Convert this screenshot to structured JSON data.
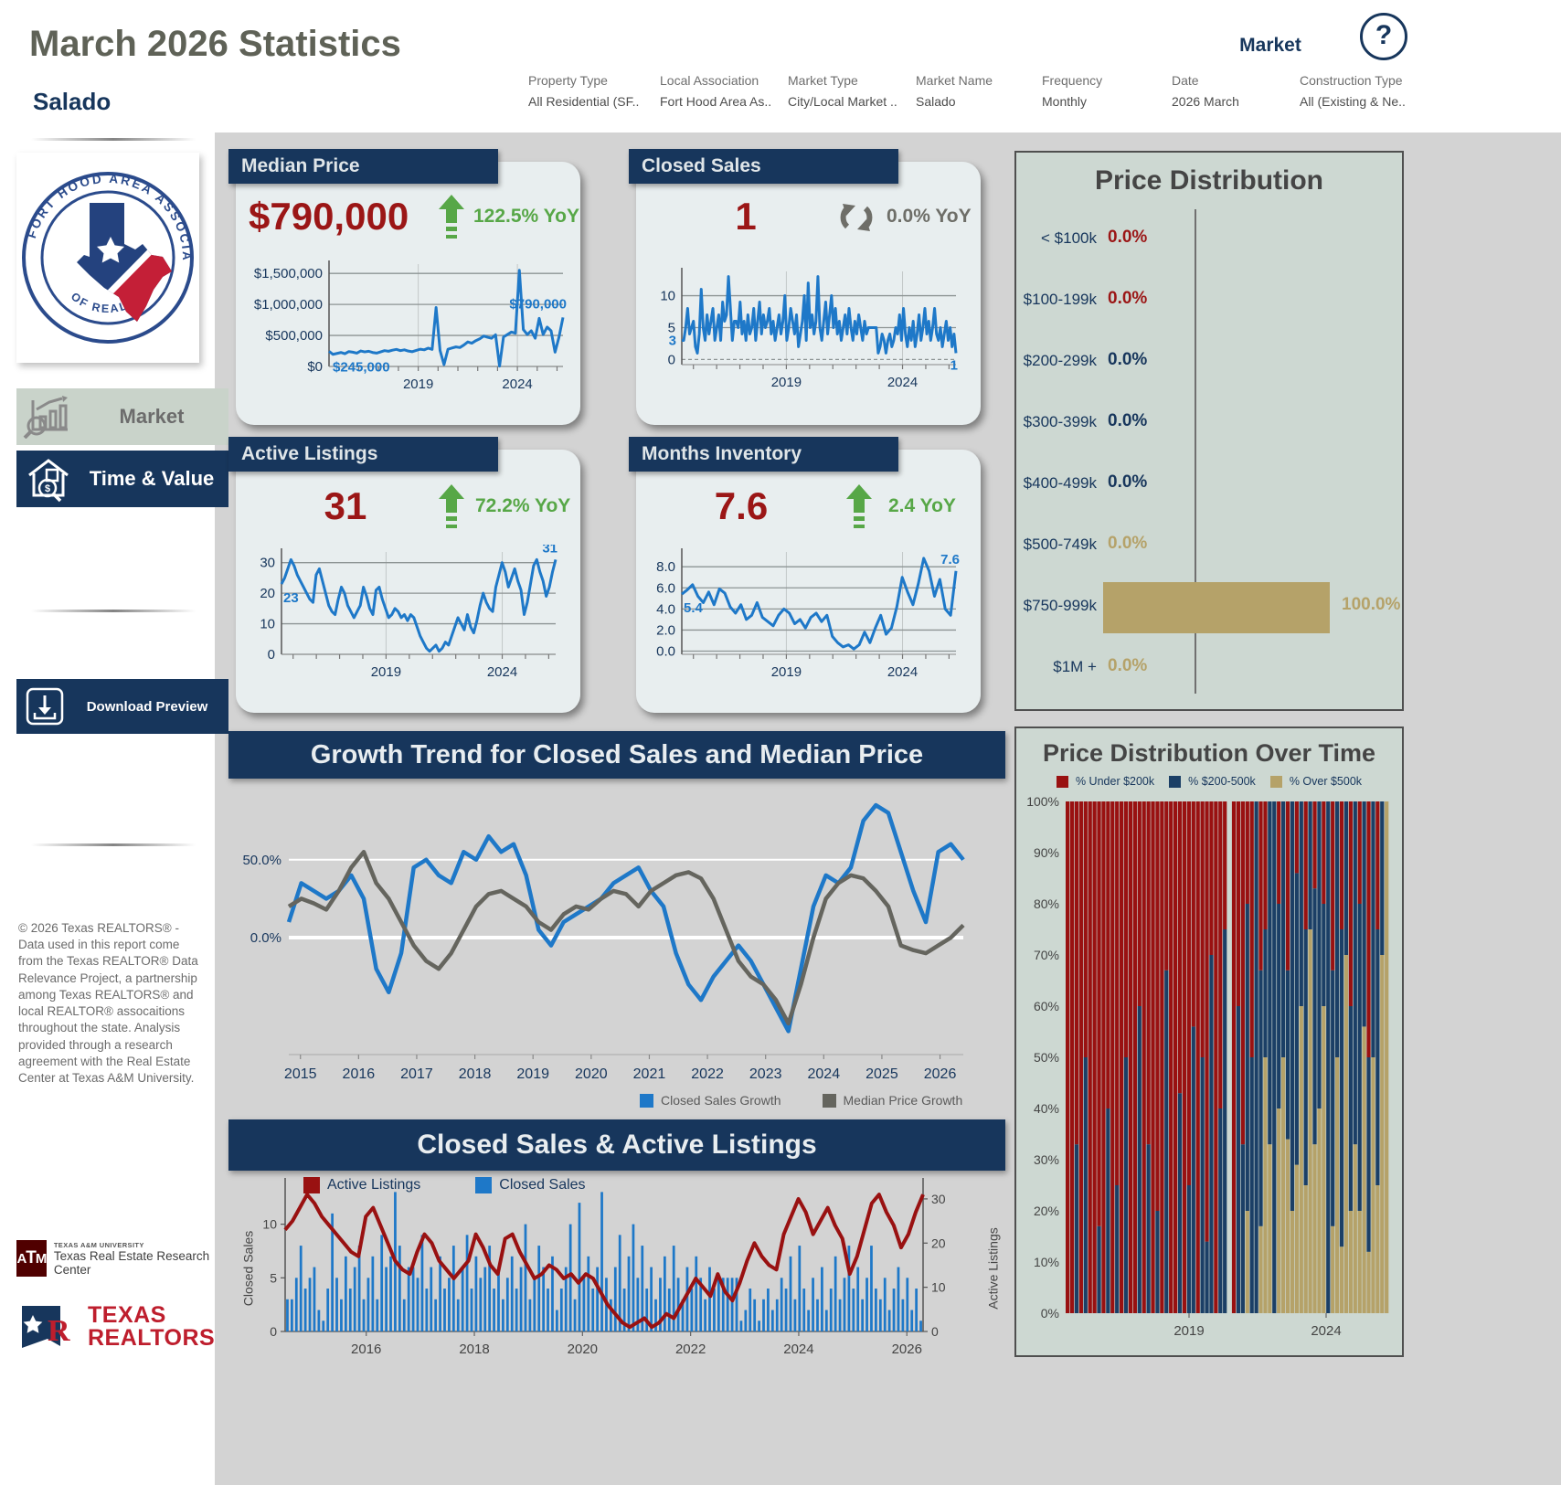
{
  "header": {
    "title": "March 2026 Statistics",
    "subtitle": "Salado",
    "market_label": "Market",
    "filters": [
      {
        "label": "Property Type",
        "value": "All Residential (SF.."
      },
      {
        "label": "Local Association",
        "value": "Fort Hood Area As.."
      },
      {
        "label": "Market Type",
        "value": "City/Local Market .."
      },
      {
        "label": "Market Name",
        "value": "Salado"
      },
      {
        "label": "Frequency",
        "value": "Monthly"
      },
      {
        "label": "Date",
        "value": "2026 March"
      },
      {
        "label": "Construction Type",
        "value": "All (Existing & Ne.."
      }
    ]
  },
  "sidebar": {
    "logo_top_text": "FORT HOOD AREA ASSOCIATION",
    "logo_bottom_text": "OF REALTORS®",
    "nav": [
      {
        "label": "Market",
        "active": false
      },
      {
        "label": "Time & Value",
        "active": true
      }
    ],
    "download_label": "Download Preview",
    "copyright": "© 2026 Texas REALTORS® - Data used in this report come from the Texas REALTOR® Data Relevance Project, a partnership among Texas REALTORS® and local REALTOR® assocaitions throughout the state. Analysis provided through a research agreement with the Real Estate Center at Texas A&M University.",
    "tamu_line1": "TEXAS A&M UNIVERSITY",
    "tamu_line2": "Texas Real Estate Research Center",
    "txr_line1": "TEXAS",
    "txr_line2": "REALTORS"
  },
  "kpis": {
    "median_price": {
      "title": "Median Price",
      "value": "$790,000",
      "yoy": "122.5% YoY",
      "trend": "up"
    },
    "closed_sales": {
      "title": "Closed Sales",
      "value": "1",
      "yoy": "0.0% YoY",
      "trend": "flat"
    },
    "active_listings": {
      "title": "Active Listings",
      "value": "31",
      "yoy": "72.2% YoY",
      "trend": "up"
    },
    "months_inventory": {
      "title": "Months Inventory",
      "value": "7.6",
      "yoy": "2.4 YoY",
      "trend": "up"
    }
  },
  "panels": {
    "growth_title": "Growth Trend for Closed Sales and Median Price",
    "combo_title": "Closed Sales & Active Listings",
    "pd_title": "Price Distribution",
    "pdot_title": "Price Distribution Over Time"
  },
  "colors": {
    "navy": "#17365c",
    "dark_red": "#9b1616",
    "green": "#57a747",
    "blue": "#1e78c8",
    "gray_line": "#65655e",
    "tan": "#b5a269",
    "bar_red": "#991111",
    "bar_navy": "#1b3f66",
    "card_bg": "#e8eeef",
    "panel_bg": "#cdd8d2",
    "page_bg": "#d3d3d3"
  },
  "chart_data": [
    {
      "id": "median-price-trend",
      "type": "line",
      "title": "Median Price",
      "x_start": 2014.5,
      "x_end": 2026.3,
      "xlabels": [
        2019,
        2024
      ],
      "ylim": [
        0,
        1650000
      ],
      "yticks": [
        {
          "v": 0,
          "label": "$0"
        },
        {
          "v": 500000,
          "label": "$500,000"
        },
        {
          "v": 1000000,
          "label": "$1,000,000"
        },
        {
          "v": 1500000,
          "label": "$1,500,000"
        }
      ],
      "first_label": "$245,000",
      "last_label": "$790,000",
      "values": [
        245000,
        195000,
        210000,
        225000,
        205000,
        240000,
        230000,
        215000,
        250000,
        235000,
        245000,
        225000,
        215000,
        235000,
        255000,
        245000,
        262000,
        275000,
        255000,
        268000,
        248000,
        238000,
        258000,
        278000,
        268000,
        295000,
        275000,
        950000,
        258000,
        30000,
        278000,
        298000,
        315000,
        305000,
        345000,
        395000,
        375000,
        415000,
        445000,
        490000,
        470000,
        455000,
        510000,
        5000,
        475000,
        515000,
        555000,
        535000,
        1550000,
        595000,
        515000,
        575000,
        455000,
        775000,
        515000,
        635000,
        575000,
        230000,
        475000,
        790000
      ]
    },
    {
      "id": "closed-sales-trend",
      "type": "line",
      "title": "Closed Sales",
      "x_start": 2014.5,
      "x_end": 2026.3,
      "xlabels": [
        2019,
        2024
      ],
      "ylim": [
        -0.8,
        13.8
      ],
      "yticks": [
        {
          "v": 0,
          "label": "0",
          "dash": true
        },
        {
          "v": 5,
          "label": "5"
        },
        {
          "v": 10,
          "label": "10"
        }
      ],
      "first_label": "3",
      "last_label": "1",
      "values": [
        3,
        3,
        5,
        8,
        4,
        5,
        6,
        2,
        1,
        4,
        11,
        5,
        3,
        7,
        4,
        6,
        8,
        3,
        5,
        7,
        3,
        9,
        6,
        7,
        13,
        8,
        3,
        6,
        6,
        5,
        9,
        4,
        6,
        3,
        7,
        4,
        5,
        8,
        3,
        6,
        9,
        4,
        7,
        5,
        6,
        8,
        4,
        6,
        3,
        5,
        7,
        4,
        6,
        10,
        3,
        5,
        8,
        6,
        4,
        7,
        2,
        4,
        6,
        10,
        3,
        12,
        5,
        7,
        4,
        6,
        13,
        5,
        3,
        6,
        9,
        4,
        7,
        10,
        5,
        8,
        4,
        6,
        3,
        5,
        7,
        4,
        8,
        5,
        3,
        6,
        4,
        7,
        5,
        3,
        6,
        4,
        5,
        5,
        5,
        5,
        5,
        1,
        2,
        4,
        3,
        1,
        3,
        4,
        2,
        3,
        5,
        4,
        7,
        3,
        8,
        4,
        2,
        5,
        3,
        6,
        2,
        4,
        7,
        3,
        5,
        8,
        4,
        6,
        3,
        5,
        8,
        4,
        3,
        5,
        2,
        4,
        6,
        3,
        5,
        2,
        4,
        1
      ]
    },
    {
      "id": "active-listings-trend",
      "type": "line",
      "title": "Active Listings",
      "x_start": 2014.5,
      "x_end": 2026.3,
      "xlabels": [
        2019,
        2024
      ],
      "ylim": [
        0,
        33.5
      ],
      "yticks": [
        {
          "v": 0,
          "label": "0"
        },
        {
          "v": 10,
          "label": "10"
        },
        {
          "v": 20,
          "label": "20"
        },
        {
          "v": 30,
          "label": "30"
        }
      ],
      "first_label": "23",
      "last_label": "31",
      "values": [
        23,
        25,
        28,
        31,
        29,
        26,
        24,
        22,
        20,
        18,
        17,
        26,
        28,
        24,
        20,
        16,
        14,
        13,
        18,
        22,
        20,
        16,
        14,
        12,
        14,
        16,
        22,
        19,
        15,
        13,
        21,
        22,
        18,
        15,
        12,
        13,
        15,
        14,
        12,
        13,
        11,
        13,
        12,
        9,
        6,
        4,
        2,
        1,
        2,
        3,
        1,
        2,
        4,
        3,
        6,
        9,
        12,
        10,
        8,
        13,
        9,
        7,
        11,
        16,
        20,
        17,
        15,
        14,
        22,
        26,
        30,
        27,
        22,
        25,
        28,
        24,
        21,
        13,
        17,
        23,
        29,
        31,
        27,
        24,
        19,
        22,
        27,
        31
      ]
    },
    {
      "id": "months-inventory-trend",
      "type": "line",
      "title": "Months Inventory",
      "x_start": 2014.5,
      "x_end": 2026.3,
      "xlabels": [
        2019,
        2024
      ],
      "ylim": [
        -0.3,
        9.4
      ],
      "yticks": [
        {
          "v": 0,
          "label": "0.0"
        },
        {
          "v": 2,
          "label": "2.0"
        },
        {
          "v": 4,
          "label": "4.0"
        },
        {
          "v": 6,
          "label": "6.0"
        },
        {
          "v": 8,
          "label": "8.0"
        }
      ],
      "first_label": "5.4",
      "last_label": "7.6",
      "values": [
        5.4,
        5.8,
        6.3,
        5.2,
        4.6,
        5.6,
        4.4,
        5.9,
        5.5,
        4.2,
        3.6,
        4.4,
        3.0,
        3.4,
        4.6,
        3.2,
        2.8,
        2.4,
        3.4,
        4.0,
        3.6,
        2.6,
        3.0,
        2.2,
        3.2,
        3.6,
        2.8,
        3.4,
        1.4,
        0.8,
        0.4,
        0.6,
        0.2,
        0.6,
        1.8,
        0.8,
        2.2,
        3.4,
        1.6,
        2.2,
        4.2,
        7.0,
        5.6,
        4.4,
        6.4,
        8.8,
        7.6,
        5.2,
        6.8,
        4.0,
        3.4,
        7.6
      ]
    },
    {
      "id": "growth-trend",
      "type": "line",
      "title": "Growth Trend for Closed Sales and Median Price",
      "x_start": 2014.8,
      "x_end": 2026.4,
      "xlabels": [
        2015,
        2016,
        2017,
        2018,
        2019,
        2020,
        2021,
        2022,
        2023,
        2024,
        2025,
        2026
      ],
      "ylim": [
        -75,
        95
      ],
      "yticks": [
        {
          "v": 0,
          "label": "0.0%"
        },
        {
          "v": 50,
          "label": "50.0%"
        }
      ],
      "series": [
        {
          "name": "Closed Sales Growth",
          "color": "#1e78c8",
          "values": [
            10,
            35,
            30,
            25,
            30,
            40,
            25,
            -20,
            -35,
            -10,
            45,
            50,
            40,
            35,
            55,
            50,
            65,
            55,
            60,
            40,
            5,
            -5,
            10,
            15,
            20,
            25,
            35,
            40,
            45,
            30,
            20,
            -10,
            -30,
            -40,
            -25,
            -15,
            -5,
            -15,
            -30,
            -45,
            -60,
            -20,
            20,
            40,
            35,
            45,
            75,
            85,
            80,
            55,
            30,
            10,
            55,
            60,
            50
          ]
        },
        {
          "name": "Median Price Growth",
          "color": "#65655e",
          "values": [
            20,
            25,
            22,
            18,
            30,
            45,
            55,
            35,
            25,
            10,
            -5,
            -15,
            -20,
            -10,
            5,
            20,
            28,
            30,
            25,
            20,
            10,
            5,
            15,
            20,
            18,
            25,
            30,
            28,
            20,
            30,
            35,
            40,
            42,
            38,
            25,
            5,
            -15,
            -25,
            -30,
            -40,
            -55,
            -30,
            0,
            25,
            35,
            40,
            38,
            30,
            20,
            -5,
            -8,
            -10,
            -5,
            0,
            8
          ]
        }
      ]
    },
    {
      "id": "price-distribution",
      "type": "bar",
      "title": "Price Distribution",
      "categories": [
        "< $100k",
        "$100-199k",
        "$200-299k",
        "$300-399k",
        "$400-499k",
        "$500-749k",
        "$750-999k",
        "$1M +"
      ],
      "values": [
        0,
        0,
        0,
        0,
        0,
        0,
        100,
        0
      ],
      "value_labels": [
        "0.0%",
        "0.0%",
        "0.0%",
        "0.0%",
        "0.0%",
        "0.0%",
        "100.0%",
        "0.0%"
      ],
      "row_colors": [
        "#9b1616",
        "#9b1616",
        "#17365c",
        "#17365c",
        "#17365c",
        "#b5a269",
        "#b5a269",
        "#b5a269"
      ],
      "bar_color": "#b5a269",
      "xlim": [
        0,
        100
      ]
    },
    {
      "id": "closed-sales-active-listings",
      "type": "bar+line",
      "title": "Closed Sales & Active Listings",
      "legend": [
        "Active Listings",
        "Closed Sales"
      ],
      "bars_ref": "closed-sales-trend",
      "line_ref": "active-listings-trend",
      "bar_color": "#1e78c8",
      "line_color": "#991111",
      "left_axis": {
        "label": "Closed Sales",
        "ticks": [
          0,
          5,
          10
        ],
        "lim": [
          0,
          13.8
        ]
      },
      "right_axis": {
        "label": "Active Listings",
        "ticks": [
          0,
          10,
          20,
          30
        ],
        "lim": [
          0,
          33.5
        ]
      },
      "x_start": 2014.5,
      "x_end": 2026.3,
      "xlabels": [
        2016,
        2018,
        2020,
        2022,
        2024,
        2026
      ]
    },
    {
      "id": "price-distribution-over-time",
      "type": "stacked-bar",
      "title": "Price Distribution Over Time",
      "series": [
        {
          "name": "% Under $200k",
          "color": "#991111"
        },
        {
          "name": "% $200-500k",
          "color": "#1b3f66"
        },
        {
          "name": "% Over $500k",
          "color": "#b5a269"
        }
      ],
      "x_start": 2014.5,
      "x_end": 2026.3,
      "xlabels": [
        2019,
        2024
      ],
      "ylim": [
        0,
        100
      ],
      "yticks": [
        "0%",
        "10%",
        "20%",
        "30%",
        "40%",
        "50%",
        "60%",
        "70%",
        "80%",
        "90%",
        "100%"
      ],
      "columns": [
        [
          100,
          0,
          0
        ],
        [
          100,
          0,
          0
        ],
        [
          67,
          33,
          0
        ],
        [
          100,
          0,
          0
        ],
        [
          50,
          50,
          0
        ],
        [
          100,
          0,
          0
        ],
        [
          100,
          0,
          0
        ],
        [
          83,
          17,
          0
        ],
        [
          100,
          0,
          0
        ],
        [
          60,
          40,
          0
        ],
        [
          100,
          0,
          0
        ],
        [
          75,
          25,
          0
        ],
        [
          100,
          0,
          0
        ],
        [
          50,
          50,
          0
        ],
        [
          100,
          0,
          0
        ],
        [
          100,
          0,
          0
        ],
        [
          40,
          60,
          0
        ],
        [
          100,
          0,
          0
        ],
        [
          67,
          33,
          0
        ],
        [
          100,
          0,
          0
        ],
        [
          80,
          20,
          0
        ],
        [
          100,
          0,
          0
        ],
        [
          33,
          67,
          0
        ],
        [
          100,
          0,
          0
        ],
        [
          100,
          0,
          0
        ],
        [
          57,
          43,
          0
        ],
        [
          100,
          0,
          0
        ],
        [
          75,
          25,
          0
        ],
        [
          44,
          56,
          0
        ],
        [
          100,
          0,
          0
        ],
        [
          50,
          50,
          0
        ],
        [
          86,
          14,
          0
        ],
        [
          30,
          70,
          0
        ],
        [
          100,
          0,
          0
        ],
        [
          60,
          40,
          0
        ],
        [
          25,
          75,
          0
        ],
        null,
        [
          100,
          0,
          0
        ],
        [
          40,
          60,
          0
        ],
        [
          67,
          33,
          0
        ],
        [
          20,
          60,
          20
        ],
        [
          50,
          50,
          0
        ],
        [
          0,
          100,
          0
        ],
        [
          33,
          50,
          17
        ],
        [
          25,
          25,
          50
        ],
        [
          0,
          67,
          33
        ],
        [
          0,
          100,
          0
        ],
        [
          20,
          40,
          40
        ],
        [
          0,
          50,
          50
        ],
        [
          33,
          33,
          34
        ],
        [
          0,
          80,
          20
        ],
        [
          14,
          57,
          29
        ],
        [
          0,
          40,
          60
        ],
        [
          25,
          50,
          25
        ],
        [
          0,
          25,
          75
        ],
        [
          17,
          50,
          33
        ],
        [
          0,
          60,
          40
        ],
        [
          20,
          20,
          60
        ],
        [
          0,
          100,
          0
        ],
        [
          33,
          50,
          17
        ],
        [
          0,
          50,
          50
        ],
        [
          25,
          62,
          13
        ],
        [
          0,
          30,
          70
        ],
        [
          40,
          40,
          20
        ],
        [
          0,
          67,
          33
        ],
        [
          20,
          60,
          20
        ],
        [
          0,
          44,
          56
        ],
        [
          50,
          38,
          12
        ],
        [
          0,
          50,
          50
        ],
        [
          25,
          50,
          25
        ],
        [
          0,
          30,
          70
        ],
        [
          0,
          0,
          100
        ]
      ]
    }
  ]
}
